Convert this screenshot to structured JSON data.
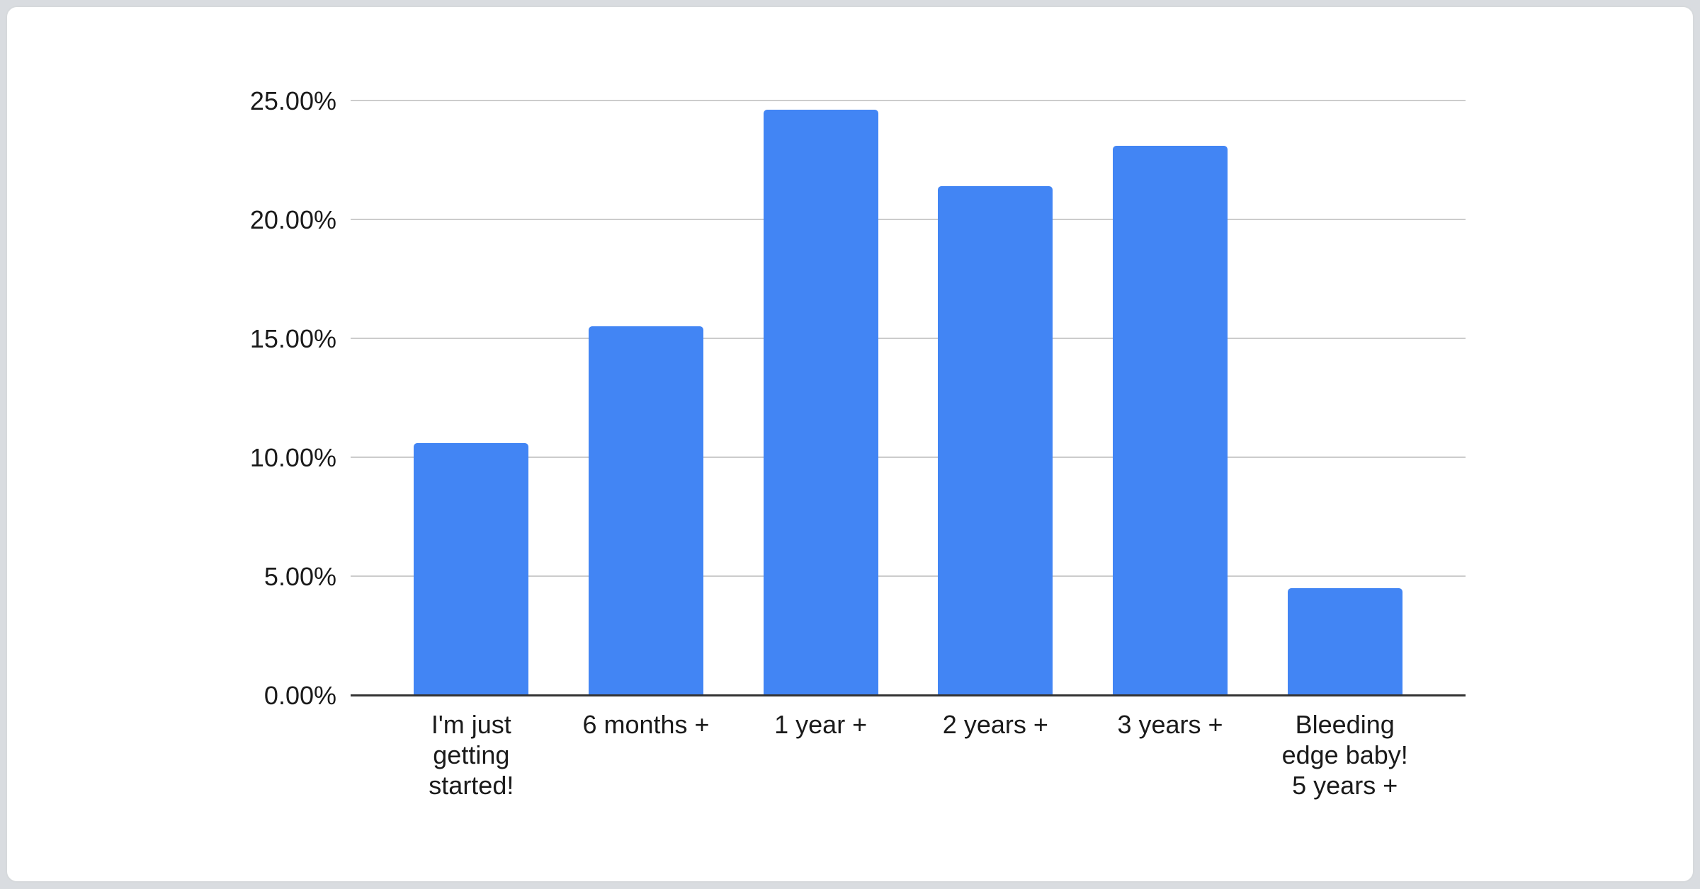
{
  "page": {
    "background_color": "#d9dce0"
  },
  "card": {
    "background_color": "#ffffff",
    "border_color": "#d6d9dc"
  },
  "chart_data": {
    "type": "bar",
    "title": "",
    "xlabel": "",
    "ylabel": "",
    "categories": [
      "I'm just\ngetting\nstarted!",
      "6 months +",
      "1 year +",
      "2 years +",
      "3 years +",
      "Bleeding\nedge baby!\n5 years +"
    ],
    "values": [
      10.6,
      15.5,
      24.6,
      21.4,
      23.1,
      4.5
    ],
    "value_unit": "percent",
    "ylim": [
      0,
      25
    ],
    "y_ticks": [
      {
        "value": 25,
        "label": "25.00%"
      },
      {
        "value": 20,
        "label": "20.00%"
      },
      {
        "value": 15,
        "label": "15.00%"
      },
      {
        "value": 10,
        "label": "10.00%"
      },
      {
        "value": 5,
        "label": "5.00%"
      },
      {
        "value": 0,
        "label": "0.00%"
      }
    ],
    "grid": true,
    "legend": "none",
    "bar_color": "#4285f4",
    "gridline_color": "#cccccc",
    "axis_line_color": "#333333",
    "label_color": "#1a1a1a"
  }
}
